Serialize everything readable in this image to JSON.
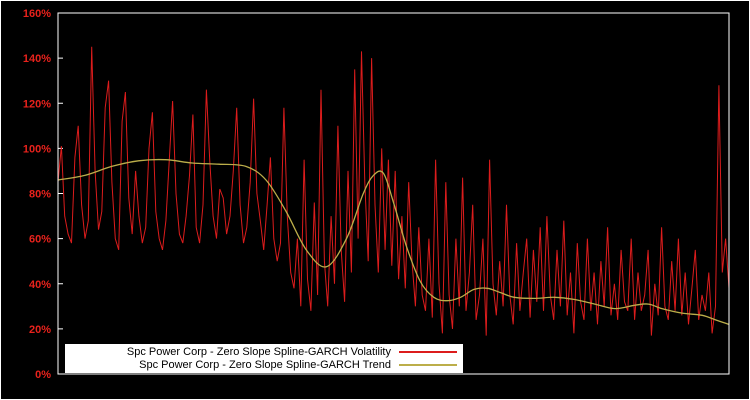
{
  "chart_data": {
    "type": "line",
    "title": "",
    "xlabel": "",
    "ylabel": "",
    "ylim": [
      0,
      160
    ],
    "grid": false,
    "background_color": "#000000",
    "frame_color": "#ffffff",
    "axis_label_color": "#e8221c",
    "legend_position": "bottom-inside",
    "yticks": [
      {
        "v": 0,
        "label": "0%"
      },
      {
        "v": 20,
        "label": "20%"
      },
      {
        "v": 40,
        "label": "40%"
      },
      {
        "v": 60,
        "label": "60%"
      },
      {
        "v": 80,
        "label": "80%"
      },
      {
        "v": 100,
        "label": "100%"
      },
      {
        "v": 120,
        "label": "120%"
      },
      {
        "v": 140,
        "label": "140%"
      },
      {
        "v": 160,
        "label": "160%"
      }
    ],
    "series": [
      {
        "name": "Spc Power Corp - Zero Slope Spline-GARCH Volatility",
        "color": "#dc1c1c",
        "style": "noisy",
        "values": [
          85,
          101,
          70,
          62,
          58,
          96,
          110,
          75,
          60,
          68,
          145,
          90,
          64,
          72,
          118,
          130,
          85,
          60,
          55,
          112,
          125,
          78,
          62,
          90,
          70,
          58,
          65,
          100,
          116,
          72,
          60,
          55,
          68,
          95,
          121,
          80,
          62,
          58,
          70,
          88,
          115,
          65,
          58,
          75,
          126,
          95,
          70,
          60,
          82,
          78,
          62,
          70,
          90,
          118,
          75,
          58,
          65,
          85,
          122,
          80,
          68,
          55,
          75,
          96,
          60,
          50,
          58,
          118,
          70,
          45,
          38,
          60,
          30,
          95,
          42,
          28,
          76,
          35,
          126,
          50,
          30,
          70,
          40,
          110,
          55,
          32,
          90,
          45,
          135,
          60,
          143,
          85,
          50,
          140,
          75,
          45,
          100,
          55,
          95,
          48,
          90,
          42,
          70,
          38,
          85,
          50,
          30,
          65,
          35,
          28,
          60,
          25,
          95,
          40,
          18,
          85,
          35,
          20,
          60,
          30,
          87,
          28,
          45,
          75,
          24,
          35,
          60,
          17,
          95,
          40,
          26,
          50,
          30,
          75,
          35,
          22,
          58,
          28,
          45,
          60,
          25,
          55,
          32,
          65,
          28,
          70,
          35,
          24,
          55,
          30,
          68,
          26,
          45,
          18,
          58,
          32,
          24,
          60,
          28,
          45,
          22,
          50,
          30,
          65,
          26,
          40,
          24,
          55,
          32,
          28,
          60,
          24,
          45,
          28,
          35,
          55,
          17,
          40,
          26,
          65,
          30,
          24,
          50,
          28,
          60,
          26,
          45,
          22,
          38,
          55,
          24,
          35,
          28,
          45,
          18,
          30,
          128,
          45,
          60,
          38
        ]
      },
      {
        "name": "Spc Power Corp - Zero Slope Spline-GARCH Trend",
        "color": "#bcae4a",
        "style": "smooth",
        "points": [
          [
            0.0,
            86
          ],
          [
            0.04,
            88
          ],
          [
            0.08,
            92
          ],
          [
            0.12,
            94.5
          ],
          [
            0.16,
            95
          ],
          [
            0.2,
            93.5
          ],
          [
            0.24,
            93
          ],
          [
            0.28,
            92
          ],
          [
            0.31,
            86
          ],
          [
            0.34,
            72
          ],
          [
            0.37,
            55
          ],
          [
            0.4,
            47.5
          ],
          [
            0.43,
            60
          ],
          [
            0.455,
            80
          ],
          [
            0.47,
            88
          ],
          [
            0.485,
            89
          ],
          [
            0.5,
            76
          ],
          [
            0.52,
            56
          ],
          [
            0.54,
            41
          ],
          [
            0.56,
            34
          ],
          [
            0.58,
            32.5
          ],
          [
            0.6,
            34
          ],
          [
            0.62,
            37.5
          ],
          [
            0.64,
            38
          ],
          [
            0.66,
            36
          ],
          [
            0.68,
            34
          ],
          [
            0.71,
            33.5
          ],
          [
            0.74,
            34
          ],
          [
            0.77,
            33
          ],
          [
            0.8,
            31
          ],
          [
            0.83,
            29
          ],
          [
            0.86,
            30.5
          ],
          [
            0.88,
            31
          ],
          [
            0.9,
            29
          ],
          [
            0.93,
            27
          ],
          [
            0.96,
            26
          ],
          [
            0.98,
            24
          ],
          [
            1.0,
            22
          ]
        ]
      }
    ]
  }
}
